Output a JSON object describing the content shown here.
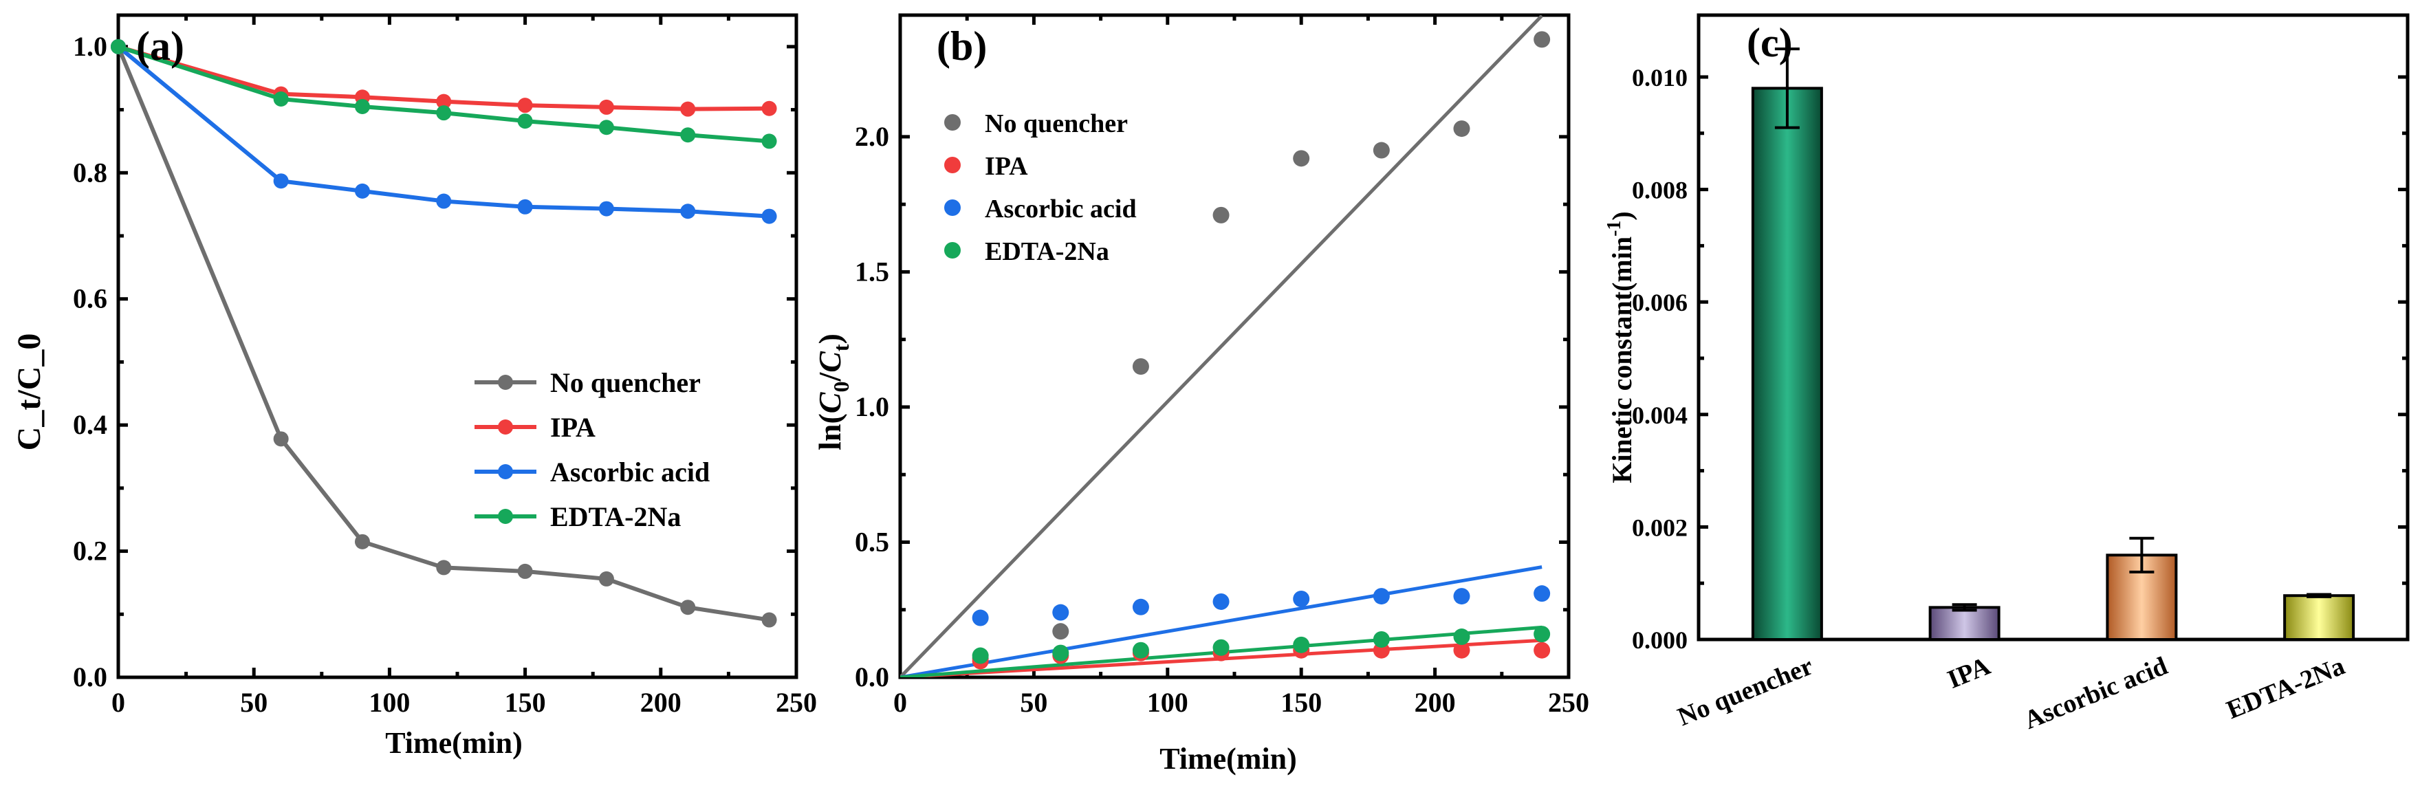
{
  "colors": {
    "no_quencher": "#6e6e6e",
    "ipa": "#f03c3c",
    "ascorbic": "#1e6fe6",
    "edta": "#16a85a"
  },
  "chart_data": [
    {
      "type": "line",
      "panel_label": "(a)",
      "xlabel": "Time(min)",
      "ylabel": "C_t/C_0",
      "xlim": [
        0,
        250
      ],
      "ylim": [
        0,
        1.05
      ],
      "xticks": [
        0,
        50,
        100,
        150,
        200,
        250
      ],
      "xtick_labels": [
        "0",
        "50",
        "100",
        "150",
        "200",
        "250"
      ],
      "yticks": [
        0,
        0.2,
        0.4,
        0.6,
        0.8,
        1.0
      ],
      "ytick_labels": [
        "0.0",
        "0.2",
        "0.4",
        "0.6",
        "0.8",
        "1.0"
      ],
      "legend_position": "bottom-right",
      "x": [
        0,
        60,
        90,
        120,
        150,
        180,
        210,
        240
      ],
      "series": [
        {
          "name": "No quencher",
          "color": "#6e6e6e",
          "values": [
            1.0,
            0.378,
            0.215,
            0.174,
            0.168,
            0.156,
            0.111,
            0.091
          ]
        },
        {
          "name": "IPA",
          "color": "#f03c3c",
          "values": [
            1.0,
            0.925,
            0.92,
            0.913,
            0.907,
            0.904,
            0.901,
            0.902
          ]
        },
        {
          "name": "Ascorbic acid",
          "color": "#1e6fe6",
          "values": [
            1.0,
            0.787,
            0.771,
            0.755,
            0.746,
            0.743,
            0.739,
            0.731
          ]
        },
        {
          "name": "EDTA-2Na",
          "color": "#16a85a",
          "values": [
            1.0,
            0.917,
            0.905,
            0.895,
            0.882,
            0.872,
            0.86,
            0.85
          ]
        }
      ]
    },
    {
      "type": "scatter",
      "panel_label": "(b)",
      "xlabel": "Time(min)",
      "ylabel_parts": {
        "prefix": "ln(",
        "c0": "C",
        "sub0": "0",
        "slash": "/",
        "ct": "C",
        "subt": "t",
        "suffix": ")"
      },
      "xlim": [
        0,
        250
      ],
      "ylim": [
        0,
        2.45
      ],
      "xticks": [
        0,
        50,
        100,
        150,
        200,
        250
      ],
      "xtick_labels": [
        "0",
        "50",
        "100",
        "150",
        "200",
        "250"
      ],
      "yticks": [
        0,
        0.5,
        1.0,
        1.5,
        2.0
      ],
      "ytick_labels": [
        "0.0",
        "0.5",
        "1.0",
        "1.5",
        "2.0"
      ],
      "legend_position": "top-left",
      "x": [
        30,
        60,
        90,
        120,
        150,
        180,
        210,
        240
      ],
      "series": [
        {
          "name": "No quencher",
          "color": "#6e6e6e",
          "values": [
            0.07,
            0.17,
            1.15,
            1.71,
            1.92,
            1.95,
            2.03,
            2.36
          ],
          "fit_slope": 0.0102
        },
        {
          "name": "IPA",
          "color": "#f03c3c",
          "values": [
            0.06,
            0.08,
            0.09,
            0.09,
            0.1,
            0.1,
            0.1,
            0.1
          ],
          "fit_slope": 0.00057
        },
        {
          "name": "Ascorbic acid",
          "color": "#1e6fe6",
          "values": [
            0.22,
            0.24,
            0.26,
            0.28,
            0.29,
            0.3,
            0.3,
            0.31
          ],
          "fit_slope": 0.0017
        },
        {
          "name": "EDTA-2Na",
          "color": "#16a85a",
          "values": [
            0.08,
            0.09,
            0.1,
            0.11,
            0.12,
            0.14,
            0.15,
            0.16
          ],
          "fit_slope": 0.00077
        }
      ]
    },
    {
      "type": "bar",
      "panel_label": "(c)",
      "xlabel": "",
      "ylabel_main": "Kinetic constant(min",
      "ylabel_sup": "-1",
      "ylabel_end": ")",
      "ylim": [
        0,
        0.0111
      ],
      "yticks": [
        0,
        0.002,
        0.004,
        0.006,
        0.008,
        0.01
      ],
      "ytick_labels": [
        "0.000",
        "0.002",
        "0.004",
        "0.006",
        "0.008",
        "0.010"
      ],
      "categories": [
        "No quencher",
        "IPA",
        "Ascorbic acid",
        "EDTA-2Na"
      ],
      "values": [
        0.0098,
        0.00057,
        0.0015,
        0.00078
      ],
      "errors": [
        0.0007,
        5e-05,
        0.0003,
        2e-05
      ],
      "bar_colors": [
        [
          "#0a4a33",
          "#2db889"
        ],
        [
          "#5b4a78",
          "#cfc6e6"
        ],
        [
          "#b05a25",
          "#ffcfa3"
        ],
        [
          "#8a8a12",
          "#ffff9a"
        ]
      ]
    }
  ]
}
